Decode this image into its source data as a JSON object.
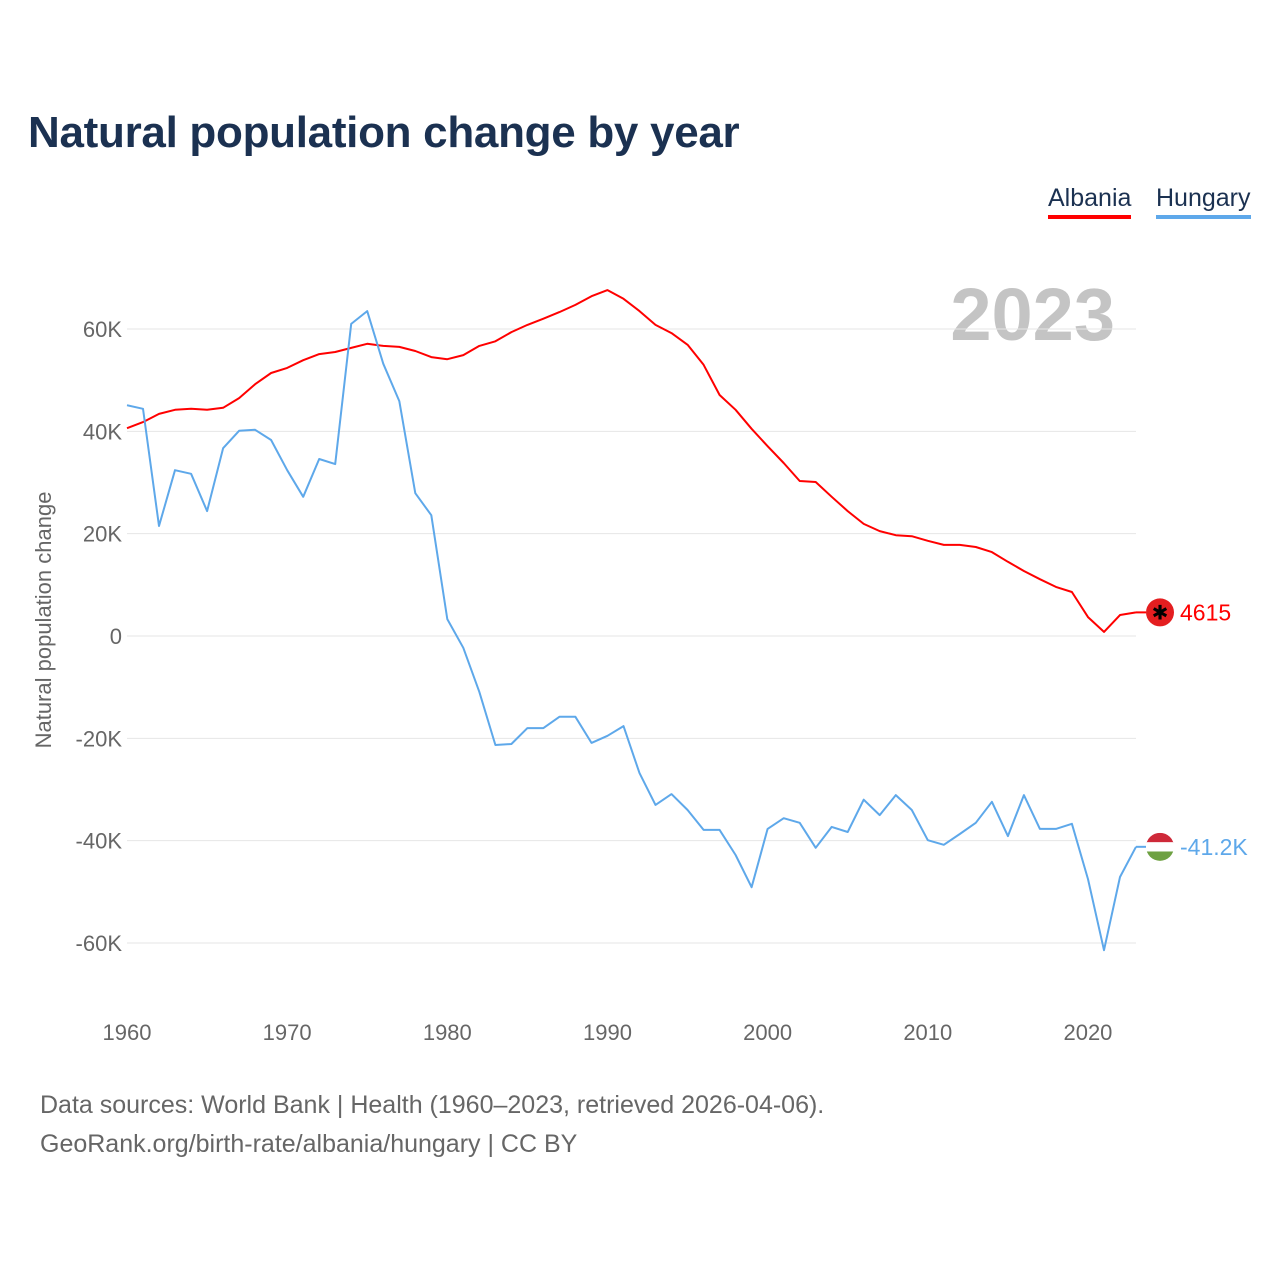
{
  "title": "Natural population change by year",
  "legend": [
    {
      "label": "Albania",
      "color": "#ff0000"
    },
    {
      "label": "Hungary",
      "color": "#5ea8ea"
    }
  ],
  "footer": {
    "line1": "Data sources: World Bank | Health (1960–2023, retrieved 2026-04-06).",
    "line2": "GeoRank.org/birth-rate/albania/hungary | CC BY"
  },
  "chart_data": {
    "type": "line",
    "title": "Natural population change by year",
    "xlabel": "",
    "ylabel": "Natural population change",
    "year_watermark": "2023",
    "xlim": [
      1960,
      2023
    ],
    "ylim": [
      -70000,
      72000
    ],
    "x_ticks": [
      1960,
      1970,
      1980,
      1990,
      2000,
      2010,
      2020
    ],
    "y_ticks": [
      {
        "v": 60000,
        "label": "60K"
      },
      {
        "v": 40000,
        "label": "40K"
      },
      {
        "v": 20000,
        "label": "20K"
      },
      {
        "v": 0,
        "label": "0"
      },
      {
        "v": -20000,
        "label": "-20K"
      },
      {
        "v": -40000,
        "label": "-40K"
      },
      {
        "v": -60000,
        "label": "-60K"
      }
    ],
    "grid": true,
    "legend_position": "top-right",
    "x_start": 1960,
    "series": [
      {
        "name": "Albania",
        "color": "#ff0000",
        "end_label": "4615",
        "flag": "albania-flag",
        "values": [
          40.6,
          41.8,
          43.4,
          44.2,
          44.4,
          44.2,
          44.6,
          46.5,
          49.2,
          51.4,
          52.4,
          53.9,
          55.1,
          55.5,
          56.3,
          57.1,
          56.7,
          56.5,
          55.7,
          54.5,
          54.1,
          54.9,
          56.7,
          57.6,
          59.4,
          60.8,
          62.0,
          63.3,
          64.7,
          66.4,
          67.6,
          65.9,
          63.5,
          60.8,
          59.2,
          56.9,
          53.0,
          47.1,
          44.2,
          40.5,
          37.1,
          33.8,
          30.3,
          30.1,
          27.2,
          24.4,
          21.9,
          20.5,
          19.7,
          19.5,
          18.6,
          17.8,
          17.8,
          17.4,
          16.4,
          14.5,
          12.7,
          11.1,
          9.6,
          8.6,
          3.7,
          0.8,
          4.1,
          4.615
        ]
      },
      {
        "name": "Hungary",
        "color": "#5ea8ea",
        "end_label": "-41.2K",
        "flag": "hungary-flag",
        "values": [
          45.1,
          44.4,
          21.5,
          32.4,
          31.7,
          24.4,
          36.7,
          40.1,
          40.3,
          38.3,
          32.4,
          27.2,
          34.6,
          33.6,
          61.0,
          63.5,
          53.2,
          45.9,
          27.9,
          23.6,
          3.3,
          -2.3,
          -10.9,
          -21.3,
          -21.1,
          -18.0,
          -18.0,
          -15.8,
          -15.8,
          -20.9,
          -19.5,
          -17.6,
          -26.8,
          -33.0,
          -30.9,
          -34.0,
          -37.9,
          -37.9,
          -42.8,
          -49.1,
          -37.7,
          -35.6,
          -36.5,
          -41.4,
          -37.3,
          -38.3,
          -32.0,
          -35.0,
          -31.1,
          -34.0,
          -39.9,
          -40.8,
          -38.7,
          -36.5,
          -32.4,
          -39.1,
          -31.1,
          -37.7,
          -37.7,
          -36.7,
          -47.5,
          -61.4,
          -47.1,
          -41.2
        ]
      }
    ],
    "value_unit": "thousands"
  }
}
